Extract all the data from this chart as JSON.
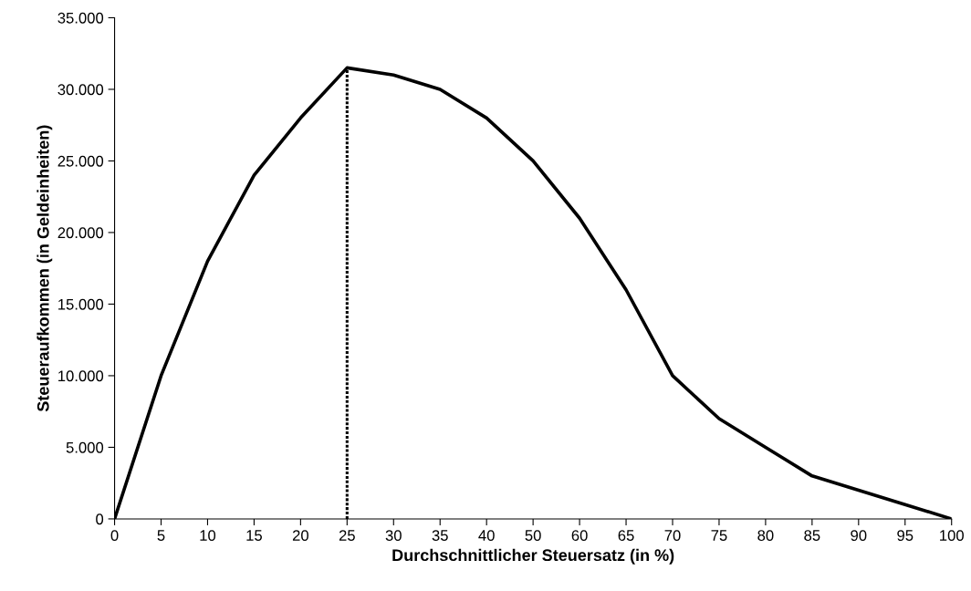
{
  "chart_data": {
    "type": "line",
    "xlabel": "Durchschnittlicher Steuersatz (in %)",
    "ylabel": "Steueraufkommen (in Geldeinheiten)",
    "categories": [
      "0",
      "5",
      "10",
      "15",
      "20",
      "25",
      "30",
      "35",
      "40",
      "50",
      "60",
      "65",
      "70",
      "75",
      "80",
      "85",
      "90",
      "95",
      "100"
    ],
    "series": [
      {
        "color": "#000000",
        "line_style": "solid",
        "values": [
          0,
          10000,
          18000,
          24000,
          28000,
          31500,
          31000,
          30000,
          28000,
          25000,
          21000,
          16000,
          10000,
          7000,
          5000,
          3000,
          2000,
          1000,
          0
        ]
      }
    ],
    "ref_lines": [
      {
        "axis": "x",
        "value": "25",
        "color": "#000000",
        "line_style": "dotted"
      }
    ],
    "ylim": [
      0,
      35000
    ],
    "yticks": [
      0,
      {
        "value": 5000,
        "label": "5.000"
      },
      {
        "value": 10000,
        "label": "10.000"
      },
      {
        "value": 15000,
        "label": "15.000"
      },
      {
        "value": 20000,
        "label": "20.000"
      },
      {
        "value": 25000,
        "label": "25.000"
      },
      {
        "value": 30000,
        "label": "30.000"
      },
      {
        "value": 35000,
        "label": "35.000"
      }
    ],
    "grid": false,
    "legend": false,
    "marker": "none"
  }
}
